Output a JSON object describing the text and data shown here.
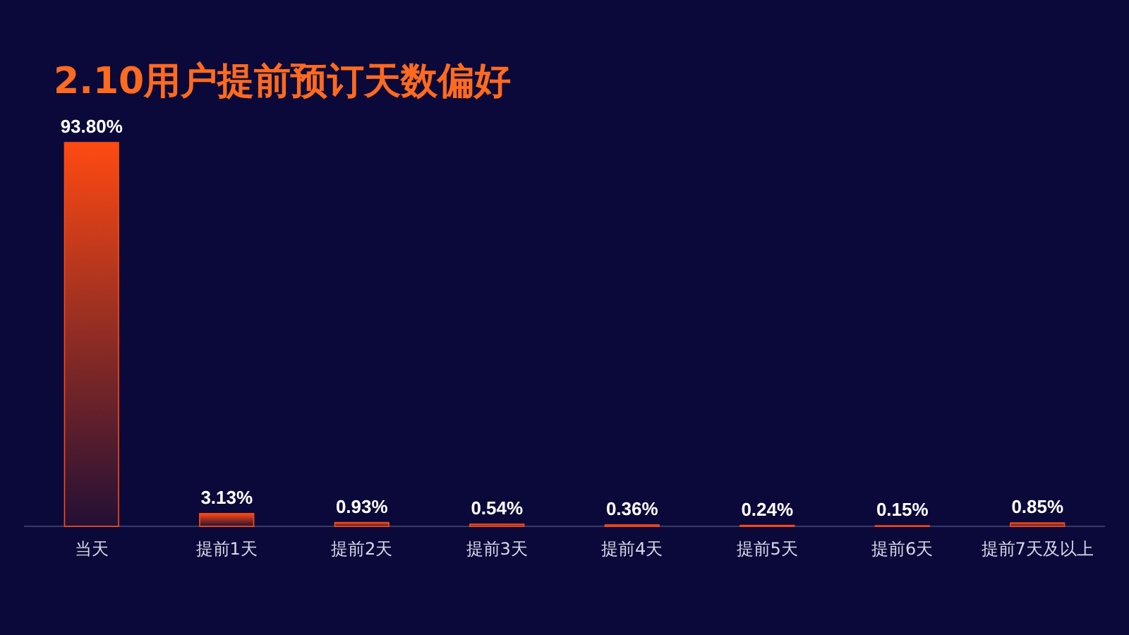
{
  "chart_data": {
    "type": "bar",
    "title": "2.10用户提前预订天数偏好",
    "categories": [
      "当天",
      "提前1天",
      "提前2天",
      "提前3天",
      "提前4天",
      "提前5天",
      "提前6天",
      "提前7天及以上"
    ],
    "values": [
      93.8,
      3.13,
      0.93,
      0.54,
      0.36,
      0.24,
      0.15,
      0.85
    ],
    "value_labels": [
      "93.80%",
      "3.13%",
      "0.93%",
      "0.54%",
      "0.36%",
      "0.24%",
      "0.15%",
      "0.85%"
    ],
    "color": "#ff4a12"
  }
}
